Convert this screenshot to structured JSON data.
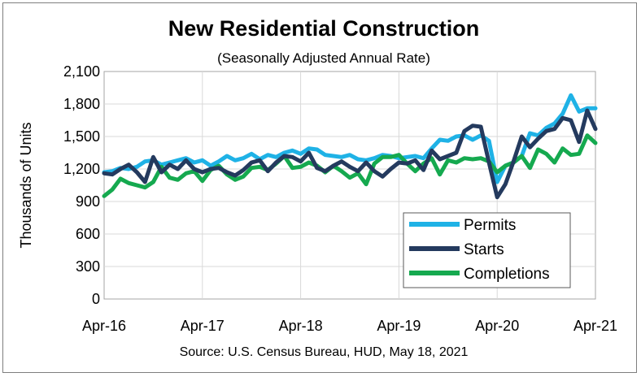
{
  "chart_data": {
    "type": "line",
    "title": "New Residential Construction",
    "subtitle": "(Seasonally Adjusted Annual Rate)",
    "ylabel": "Thousands of Units",
    "xlabel": "",
    "source": "Source:  U.S. Census Bureau, HUD, May 18, 2021",
    "ylim": [
      0,
      2100
    ],
    "yticks": [
      0,
      300,
      600,
      900,
      1200,
      1500,
      1800,
      2100
    ],
    "ytick_labels": [
      "0",
      "300",
      "600",
      "900",
      "1,200",
      "1,500",
      "1,800",
      "2,100"
    ],
    "xticks": [
      {
        "index": 0,
        "label": "Apr-16"
      },
      {
        "index": 12,
        "label": "Apr-17"
      },
      {
        "index": 24,
        "label": "Apr-18"
      },
      {
        "index": 36,
        "label": "Apr-19"
      },
      {
        "index": 48,
        "label": "Apr-20"
      },
      {
        "index": 60,
        "label": "Apr-21"
      }
    ],
    "grid": true,
    "legend_position": "bottom-right",
    "series": [
      {
        "name": "Permits",
        "color": "#1fb2e6",
        "values": [
          1170,
          1180,
          1210,
          1200,
          1220,
          1270,
          1280,
          1240,
          1260,
          1280,
          1300,
          1260,
          1280,
          1230,
          1270,
          1320,
          1280,
          1300,
          1340,
          1290,
          1330,
          1310,
          1350,
          1370,
          1340,
          1390,
          1380,
          1330,
          1320,
          1310,
          1330,
          1290,
          1280,
          1300,
          1330,
          1320,
          1300,
          1310,
          1320,
          1300,
          1390,
          1470,
          1460,
          1500,
          1510,
          1470,
          1510,
          1460,
          1080,
          1230,
          1260,
          1320,
          1530,
          1510,
          1580,
          1620,
          1710,
          1880,
          1730,
          1760,
          1760
        ]
      },
      {
        "name": "Starts",
        "color": "#243a5e",
        "values": [
          1160,
          1150,
          1200,
          1240,
          1170,
          1080,
          1310,
          1170,
          1240,
          1200,
          1280,
          1200,
          1170,
          1200,
          1210,
          1170,
          1140,
          1190,
          1260,
          1280,
          1180,
          1260,
          1320,
          1310,
          1270,
          1350,
          1210,
          1180,
          1230,
          1270,
          1220,
          1180,
          1260,
          1180,
          1130,
          1200,
          1260,
          1250,
          1280,
          1190,
          1370,
          1290,
          1320,
          1350,
          1550,
          1600,
          1590,
          1260,
          940,
          1060,
          1270,
          1500,
          1400,
          1480,
          1550,
          1570,
          1670,
          1650,
          1450,
          1740,
          1570
        ]
      },
      {
        "name": "Completions",
        "color": "#15a94f",
        "values": [
          950,
          1010,
          1110,
          1070,
          1050,
          1030,
          1080,
          1220,
          1120,
          1100,
          1160,
          1180,
          1090,
          1190,
          1230,
          1150,
          1100,
          1130,
          1210,
          1220,
          1190,
          1250,
          1320,
          1210,
          1220,
          1260,
          1230,
          1170,
          1230,
          1180,
          1120,
          1160,
          1060,
          1250,
          1310,
          1310,
          1330,
          1250,
          1180,
          1250,
          1300,
          1150,
          1280,
          1260,
          1300,
          1290,
          1300,
          1270,
          1170,
          1230,
          1260,
          1320,
          1210,
          1380,
          1340,
          1260,
          1390,
          1330,
          1340,
          1510,
          1440
        ]
      }
    ]
  }
}
